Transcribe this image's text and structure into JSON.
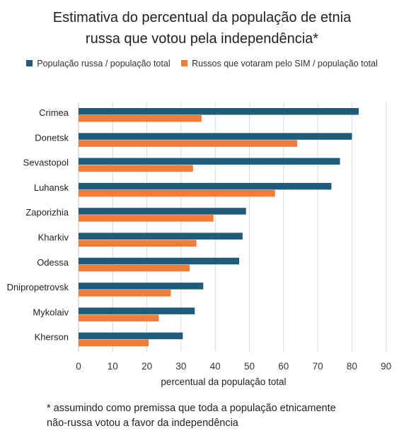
{
  "chart_data": {
    "type": "bar",
    "orientation": "horizontal",
    "title": [
      "Estimativa do percentual da população de etnia",
      "russa que votou pela independência*"
    ],
    "xlabel": "percentual da população total",
    "ylabel": "",
    "xlim": [
      0,
      90
    ],
    "xticks": [
      "0",
      "10",
      "20",
      "30",
      "40",
      "50",
      "60",
      "70",
      "80",
      "90"
    ],
    "grid": "vertical",
    "legend_position": "top",
    "categories": [
      "Crimea",
      "Donetsk",
      "Sevastopol",
      "Luhansk",
      "Zaporizhia",
      "Kharkiv",
      "Odessa",
      "Dnipropetrovsk",
      "Mykolaiv",
      "Kherson"
    ],
    "series": [
      {
        "name": "População russa / população total",
        "color": "#1f5c7c",
        "values": [
          82,
          80,
          76.5,
          74,
          49,
          48,
          47,
          36.5,
          34,
          30.5
        ]
      },
      {
        "name": "Russos que votaram pelo SIM / população total",
        "color": "#f07c37",
        "values": [
          36,
          64,
          33.5,
          57.5,
          39.5,
          34.5,
          32.5,
          27,
          23.5,
          20.5
        ]
      }
    ]
  },
  "footnote": [
    "* assumindo como premissa que toda a população etnicamente",
    "não-russa votou a favor da independência"
  ]
}
